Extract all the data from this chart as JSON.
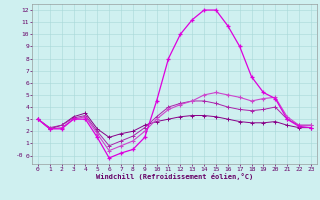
{
  "xlabel": "Windchill (Refroidissement éolien,°C)",
  "x_ticks": [
    0,
    1,
    2,
    3,
    4,
    5,
    6,
    7,
    8,
    9,
    10,
    11,
    12,
    13,
    14,
    15,
    16,
    17,
    18,
    19,
    20,
    21,
    22,
    23
  ],
  "y_ticks": [
    0,
    1,
    2,
    3,
    4,
    5,
    6,
    7,
    8,
    9,
    10,
    11,
    12
  ],
  "ylim": [
    -0.7,
    12.5
  ],
  "xlim": [
    -0.5,
    23.5
  ],
  "bg_color": "#cff0f0",
  "series1_x": [
    0,
    1,
    2,
    3,
    4,
    5,
    6,
    7,
    8,
    9,
    10,
    11,
    12,
    13,
    14,
    15,
    16,
    17,
    18,
    19,
    20,
    21,
    22,
    23
  ],
  "series1_y": [
    3.0,
    2.2,
    2.2,
    3.0,
    3.0,
    1.5,
    -0.2,
    0.2,
    0.5,
    1.5,
    4.5,
    8.0,
    10.0,
    11.2,
    12.0,
    12.0,
    10.7,
    9.0,
    6.5,
    5.2,
    4.7,
    3.0,
    2.4,
    2.3
  ],
  "series2_x": [
    0,
    1,
    2,
    3,
    4,
    5,
    6,
    7,
    8,
    9,
    10,
    11,
    12,
    13,
    14,
    15,
    16,
    17,
    18,
    19,
    20,
    21,
    22,
    23
  ],
  "series2_y": [
    3.0,
    2.2,
    2.3,
    3.0,
    3.2,
    1.8,
    0.4,
    0.8,
    1.2,
    2.0,
    3.0,
    3.8,
    4.2,
    4.5,
    5.0,
    5.2,
    5.0,
    4.8,
    4.5,
    4.7,
    4.8,
    3.2,
    2.5,
    2.5
  ],
  "series3_x": [
    0,
    1,
    2,
    3,
    4,
    5,
    6,
    7,
    8,
    9,
    10,
    11,
    12,
    13,
    14,
    15,
    16,
    17,
    18,
    19,
    20,
    21,
    22,
    23
  ],
  "series3_y": [
    3.0,
    2.3,
    2.5,
    3.1,
    3.3,
    2.0,
    0.8,
    1.2,
    1.6,
    2.3,
    3.2,
    4.0,
    4.3,
    4.5,
    4.5,
    4.3,
    4.0,
    3.8,
    3.7,
    3.8,
    4.0,
    3.0,
    2.5,
    2.5
  ],
  "series4_x": [
    0,
    1,
    2,
    3,
    4,
    5,
    6,
    7,
    8,
    9,
    10,
    11,
    12,
    13,
    14,
    15,
    16,
    17,
    18,
    19,
    20,
    21,
    22,
    23
  ],
  "series4_y": [
    3.0,
    2.2,
    2.5,
    3.2,
    3.5,
    2.2,
    1.5,
    1.8,
    2.0,
    2.5,
    2.8,
    3.0,
    3.2,
    3.3,
    3.3,
    3.2,
    3.0,
    2.8,
    2.7,
    2.7,
    2.8,
    2.5,
    2.3,
    2.3
  ]
}
